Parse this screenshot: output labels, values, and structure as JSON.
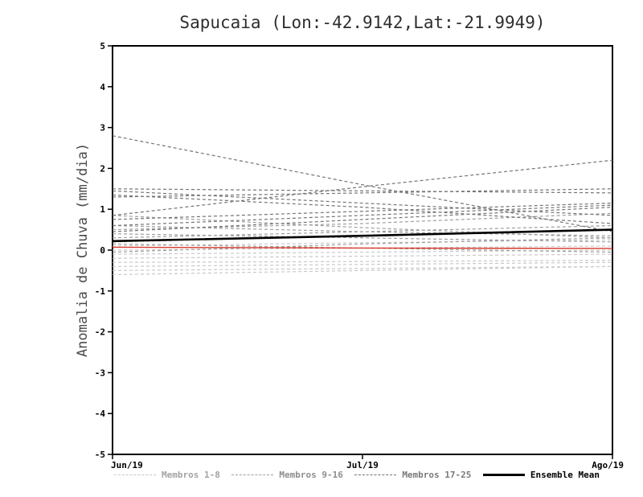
{
  "chart_data": {
    "type": "line",
    "title": "Sapucaia (Lon:-42.9142,Lat:-21.9949)",
    "xlabel": "",
    "ylabel": "Anomalia de Chuva (mm/dia)",
    "x_categories": [
      "Jun/19",
      "Jul/19",
      "Ago/19"
    ],
    "ylim": [
      -5,
      5
    ],
    "ytick_step": 1,
    "grid": false,
    "legend_position": "bottom",
    "legend": [
      {
        "label": "Membros 1-8",
        "color": "#c9c9c9",
        "text_color": "#a3a3a3",
        "dashed": true
      },
      {
        "label": "Membros 9-16",
        "color": "#9e9e9e",
        "text_color": "#8d8d8d",
        "dashed": true
      },
      {
        "label": "Membros 17-25",
        "color": "#757575",
        "text_color": "#7a7a7a",
        "dashed": true
      },
      {
        "label": "Ensemble Mean",
        "color": "#000000",
        "text_color": "#000000",
        "dashed": false
      }
    ],
    "series": [
      {
        "name": "Membro 1",
        "group": "1-8",
        "color": "#c9c9c9",
        "style": "dashed",
        "width": 1.2,
        "values": [
          -0.6,
          -0.5,
          -0.4
        ]
      },
      {
        "name": "Membro 2",
        "group": "1-8",
        "color": "#c9c9c9",
        "style": "dashed",
        "width": 1.2,
        "values": [
          -0.5,
          -0.45,
          -0.4
        ]
      },
      {
        "name": "Membro 3",
        "group": "1-8",
        "color": "#c9c9c9",
        "style": "dashed",
        "width": 1.2,
        "values": [
          -0.4,
          -0.35,
          -0.3
        ]
      },
      {
        "name": "Membro 4",
        "group": "1-8",
        "color": "#c9c9c9",
        "style": "dashed",
        "width": 1.2,
        "values": [
          -0.3,
          -0.28,
          -0.25
        ]
      },
      {
        "name": "Membro 5",
        "group": "1-8",
        "color": "#c9c9c9",
        "style": "dashed",
        "width": 1.2,
        "values": [
          -0.2,
          -0.15,
          -0.1
        ]
      },
      {
        "name": "Membro 6",
        "group": "1-8",
        "color": "#c9c9c9",
        "style": "dashed",
        "width": 1.2,
        "values": [
          -0.1,
          -0.05,
          0.0
        ]
      },
      {
        "name": "Membro 7",
        "group": "1-8",
        "color": "#c9c9c9",
        "style": "dashed",
        "width": 1.2,
        "values": [
          0.0,
          0.05,
          0.1
        ]
      },
      {
        "name": "Membro 8",
        "group": "1-8",
        "color": "#c9c9c9",
        "style": "dashed",
        "width": 1.2,
        "values": [
          0.1,
          0.18,
          0.25
        ]
      },
      {
        "name": "Membro 9",
        "group": "9-16",
        "color": "#9e9e9e",
        "style": "dashed",
        "width": 1.2,
        "values": [
          0.85,
          0.55,
          0.3
        ]
      },
      {
        "name": "Membro 10",
        "group": "9-16",
        "color": "#9e9e9e",
        "style": "dashed",
        "width": 1.2,
        "values": [
          0.6,
          0.45,
          0.35
        ]
      },
      {
        "name": "Membro 11",
        "group": "9-16",
        "color": "#9e9e9e",
        "style": "dashed",
        "width": 1.2,
        "values": [
          0.5,
          0.65,
          0.9
        ]
      },
      {
        "name": "Membro 12",
        "group": "9-16",
        "color": "#9e9e9e",
        "style": "dashed",
        "width": 1.2,
        "values": [
          0.4,
          0.3,
          0.2
        ]
      },
      {
        "name": "Membro 13",
        "group": "9-16",
        "color": "#9e9e9e",
        "style": "dashed",
        "width": 1.2,
        "values": [
          0.3,
          0.45,
          0.6
        ]
      },
      {
        "name": "Membro 14",
        "group": "9-16",
        "color": "#9e9e9e",
        "style": "dashed",
        "width": 1.2,
        "values": [
          0.2,
          0.35,
          0.5
        ]
      },
      {
        "name": "Membro 15",
        "group": "9-16",
        "color": "#9e9e9e",
        "style": "dashed",
        "width": 1.2,
        "values": [
          0.15,
          0.05,
          -0.05
        ]
      },
      {
        "name": "Membro 16",
        "group": "9-16",
        "color": "#9e9e9e",
        "style": "dashed",
        "width": 1.2,
        "values": [
          -0.05,
          0.15,
          0.3
        ]
      },
      {
        "name": "Membro 17",
        "group": "17-25",
        "color": "#757575",
        "style": "dashed",
        "width": 1.2,
        "values": [
          2.8,
          1.6,
          0.45
        ]
      },
      {
        "name": "Membro 18",
        "group": "17-25",
        "color": "#757575",
        "style": "dashed",
        "width": 1.2,
        "values": [
          1.5,
          1.45,
          1.4
        ]
      },
      {
        "name": "Membro 19",
        "group": "17-25",
        "color": "#757575",
        "style": "dashed",
        "width": 1.2,
        "values": [
          1.45,
          1.15,
          0.85
        ]
      },
      {
        "name": "Membro 20",
        "group": "17-25",
        "color": "#757575",
        "style": "dashed",
        "width": 1.2,
        "values": [
          1.35,
          1.05,
          0.65
        ]
      },
      {
        "name": "Membro 21",
        "group": "17-25",
        "color": "#757575",
        "style": "dashed",
        "width": 1.2,
        "values": [
          1.3,
          1.4,
          1.5
        ]
      },
      {
        "name": "Membro 22",
        "group": "17-25",
        "color": "#757575",
        "style": "dashed",
        "width": 1.2,
        "values": [
          0.85,
          1.55,
          2.2
        ]
      },
      {
        "name": "Membro 23",
        "group": "17-25",
        "color": "#757575",
        "style": "dashed",
        "width": 1.2,
        "values": [
          0.75,
          0.95,
          1.15
        ]
      },
      {
        "name": "Membro 24",
        "group": "17-25",
        "color": "#757575",
        "style": "dashed",
        "width": 1.2,
        "values": [
          0.6,
          0.85,
          1.1
        ]
      },
      {
        "name": "Membro 25",
        "group": "17-25",
        "color": "#757575",
        "style": "dashed",
        "width": 1.2,
        "values": [
          0.45,
          0.75,
          1.05
        ]
      },
      {
        "name": "red line",
        "group": "reference",
        "color": "#d93a2b",
        "style": "solid",
        "width": 1.4,
        "values": [
          0.07,
          0.05,
          0.04
        ]
      },
      {
        "name": "Ensemble Mean",
        "group": "mean",
        "color": "#000000",
        "style": "solid",
        "width": 2.6,
        "values": [
          0.22,
          0.35,
          0.5
        ]
      }
    ]
  }
}
